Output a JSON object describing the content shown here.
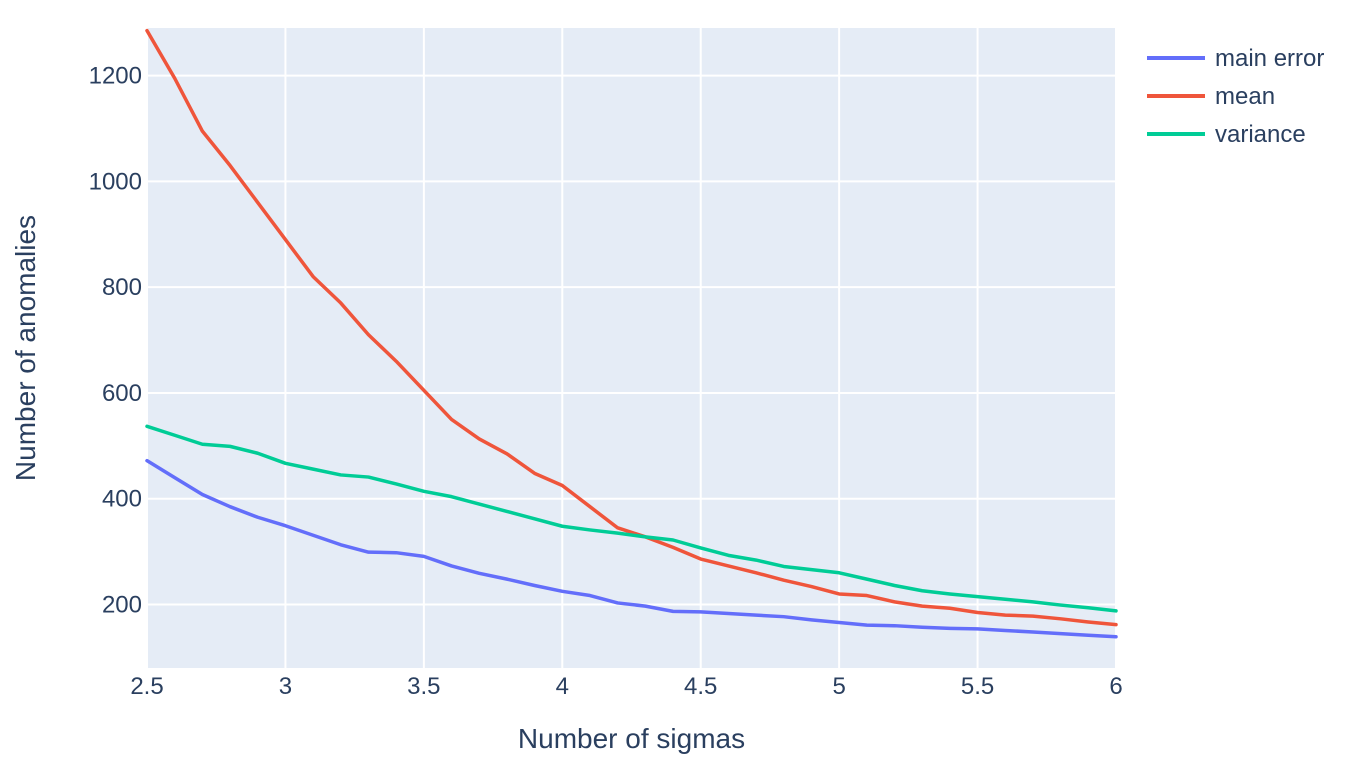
{
  "chart_data": {
    "type": "line",
    "xlabel": "Number of sigmas",
    "ylabel": "Number of anomalies",
    "xlim": [
      2.5,
      6
    ],
    "ylim": [
      80,
      1290
    ],
    "x_ticks": [
      "2.5",
      "3",
      "3.5",
      "4",
      "4.5",
      "5",
      "5.5",
      "6"
    ],
    "y_ticks": [
      "200",
      "400",
      "600",
      "800",
      "1000",
      "1200"
    ],
    "x": [
      2.5,
      2.6,
      2.7,
      2.8,
      2.9,
      3.0,
      3.1,
      3.2,
      3.3,
      3.4,
      3.5,
      3.6,
      3.7,
      3.8,
      3.9,
      4.0,
      4.1,
      4.2,
      4.3,
      4.4,
      4.5,
      4.6,
      4.7,
      4.8,
      4.9,
      5.0,
      5.1,
      5.2,
      5.3,
      5.4,
      5.5,
      5.6,
      5.7,
      5.8,
      5.9,
      6.0
    ],
    "series": [
      {
        "name": "main error",
        "color": "#636efa",
        "values": [
          472,
          440,
          408,
          385,
          365,
          349,
          331,
          313,
          299,
          298,
          291,
          273,
          259,
          248,
          236,
          225,
          217,
          203,
          197,
          187,
          186,
          183,
          180,
          177,
          171,
          166,
          161,
          160,
          157,
          155,
          154,
          151,
          148,
          145,
          142,
          139
        ]
      },
      {
        "name": "mean",
        "color": "#ef553b",
        "values": [
          1285,
          1195,
          1095,
          1030,
          960,
          890,
          820,
          770,
          710,
          660,
          605,
          550,
          513,
          485,
          448,
          425,
          385,
          345,
          328,
          308,
          286,
          273,
          260,
          246,
          234,
          220,
          217,
          205,
          197,
          193,
          185,
          180,
          178,
          173,
          167,
          162
        ]
      },
      {
        "name": "variance",
        "color": "#00cc96",
        "values": [
          537,
          520,
          503,
          499,
          486,
          467,
          456,
          445,
          441,
          428,
          414,
          404,
          390,
          376,
          362,
          348,
          341,
          335,
          328,
          322,
          307,
          293,
          284,
          272,
          266,
          260,
          248,
          236,
          226,
          220,
          215,
          210,
          205,
          199,
          194,
          188
        ]
      }
    ],
    "legend_position": "top-right",
    "grid": true,
    "plot_background": "#e5ecf6",
    "grid_color": "#ffffff",
    "text_color": "#2a3f5f"
  }
}
